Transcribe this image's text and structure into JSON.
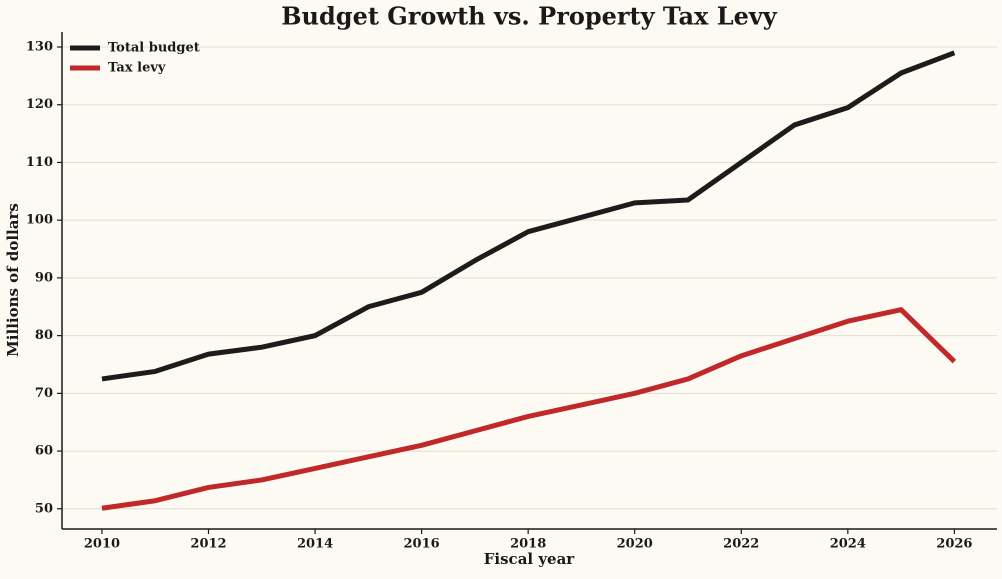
{
  "chart_data": {
    "type": "line",
    "title": "Budget Growth vs. Property Tax Levy",
    "x_label": "Fiscal year",
    "y_label": "Millions of dollars",
    "x": [
      2010,
      2011,
      2012,
      2013,
      2014,
      2015,
      2016,
      2017,
      2018,
      2019,
      2020,
      2021,
      2022,
      2023,
      2024,
      2025,
      2026
    ],
    "series": [
      {
        "name": "Total budget",
        "color": "#1c1c1c",
        "values": [
          72.5,
          73.8,
          76.8,
          78,
          80,
          85,
          87.5,
          93,
          98,
          100.5,
          103,
          103.5,
          110,
          116.5,
          119.5,
          125.5,
          129
        ]
      },
      {
        "name": "Tax levy",
        "color": "#c0282a",
        "values": [
          50.1,
          51.4,
          53.7,
          55,
          57,
          59,
          61,
          63.5,
          66,
          68,
          70,
          72.5,
          76.5,
          79.5,
          82.5,
          84.5,
          75.5
        ]
      }
    ],
    "xlim": [
      2009.25,
      2026.8
    ],
    "xticks": [
      2010,
      2012,
      2014,
      2016,
      2018,
      2020,
      2022,
      2024,
      2026
    ],
    "ylim": [
      46.5,
      132.6
    ],
    "yticks": [
      50,
      60,
      70,
      80,
      90,
      100,
      110,
      120,
      130
    ],
    "grid": true,
    "legend": "upper-left"
  }
}
